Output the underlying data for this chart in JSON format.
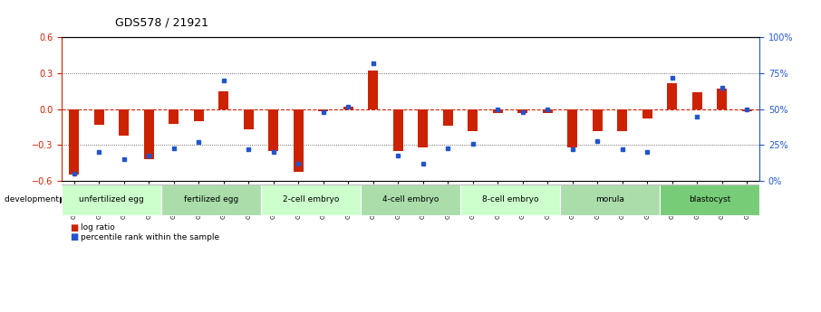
{
  "title": "GDS578 / 21921",
  "samples": [
    "GSM14658",
    "GSM14660",
    "GSM14661",
    "GSM14662",
    "GSM14663",
    "GSM14664",
    "GSM14665",
    "GSM14666",
    "GSM14667",
    "GSM14668",
    "GSM14677",
    "GSM14678",
    "GSM14679",
    "GSM14680",
    "GSM14681",
    "GSM14682",
    "GSM14683",
    "GSM14684",
    "GSM14685",
    "GSM14686",
    "GSM14687",
    "GSM14688",
    "GSM14689",
    "GSM14690",
    "GSM14691",
    "GSM14692",
    "GSM14693",
    "GSM14694"
  ],
  "log_ratio": [
    -0.55,
    -0.13,
    -0.22,
    -0.42,
    -0.12,
    -0.1,
    0.15,
    -0.17,
    -0.35,
    -0.52,
    -0.02,
    0.02,
    0.32,
    -0.35,
    -0.32,
    -0.14,
    -0.18,
    -0.03,
    -0.03,
    -0.03,
    -0.32,
    -0.18,
    -0.18,
    -0.08,
    0.22,
    0.14,
    0.17,
    -0.02
  ],
  "percentile_rank": [
    5,
    20,
    15,
    18,
    23,
    27,
    70,
    22,
    20,
    12,
    48,
    52,
    82,
    18,
    12,
    23,
    26,
    50,
    48,
    50,
    22,
    28,
    22,
    20,
    72,
    45,
    65,
    50
  ],
  "stage_groups": [
    {
      "label": "unfertilized egg",
      "start": 0,
      "end": 4,
      "color": "#ccffcc"
    },
    {
      "label": "fertilized egg",
      "start": 4,
      "end": 8,
      "color": "#aaddaa"
    },
    {
      "label": "2-cell embryo",
      "start": 8,
      "end": 12,
      "color": "#ccffcc"
    },
    {
      "label": "4-cell embryo",
      "start": 12,
      "end": 16,
      "color": "#aaddaa"
    },
    {
      "label": "8-cell embryo",
      "start": 16,
      "end": 20,
      "color": "#ccffcc"
    },
    {
      "label": "morula",
      "start": 20,
      "end": 24,
      "color": "#aaddaa"
    },
    {
      "label": "blastocyst",
      "start": 24,
      "end": 28,
      "color": "#77cc77"
    }
  ],
  "bar_color": "#cc2200",
  "dot_color": "#2255cc",
  "ylim_left": [
    -0.6,
    0.6
  ],
  "ylim_right": [
    0,
    100
  ],
  "yticks_left": [
    -0.6,
    -0.3,
    0.0,
    0.3,
    0.6
  ],
  "yticks_right": [
    0,
    25,
    50,
    75,
    100
  ],
  "background_color": "#ffffff"
}
